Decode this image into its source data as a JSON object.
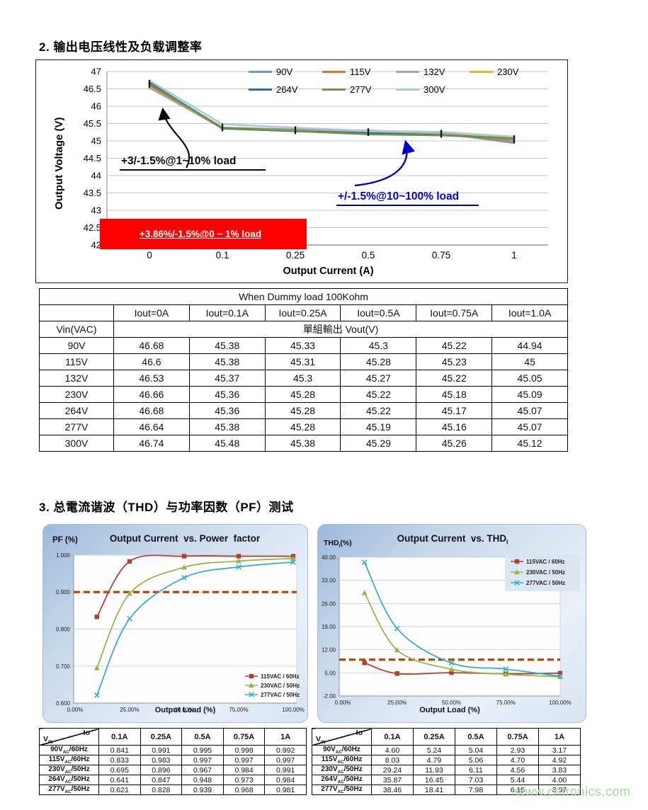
{
  "page": {
    "section2_title": "2.  输出电压线性及负载调整率",
    "section3_title": "3.  总電流谐波（THD）与功率因数（PF）测试",
    "watermark": "www.cntronics.com"
  },
  "colors": {
    "annotation_blue": "#0000CC",
    "annotation_red_box": "#FE0000",
    "threshold_dash": "#B04300",
    "watermark_green": "#A5D19B"
  },
  "chart_data": [
    {
      "id": "vout_vs_iout",
      "type": "line",
      "title": "",
      "xlabel": "Output Current (A)",
      "ylabel": "Output Voltage (V)",
      "categories": [
        "0",
        "0.1",
        "0.25",
        "0.5",
        "0.75",
        "1"
      ],
      "ylim": [
        42,
        47
      ],
      "yticks": [
        "47",
        "46.5",
        "46",
        "45.5",
        "45",
        "44.5",
        "44",
        "43.5",
        "43",
        "42.5",
        "42"
      ],
      "grid": true,
      "legend_position": "top-right",
      "series": [
        {
          "name": "90V",
          "color": "#6E9CC9",
          "values": [
            46.68,
            45.38,
            45.33,
            45.3,
            45.22,
            44.94
          ]
        },
        {
          "name": "115V",
          "color": "#D9772E",
          "values": [
            46.6,
            45.38,
            45.31,
            45.28,
            45.23,
            45
          ]
        },
        {
          "name": "132V",
          "color": "#A6A6A6",
          "values": [
            46.53,
            45.37,
            45.3,
            45.27,
            45.22,
            45.05
          ]
        },
        {
          "name": "230V",
          "color": "#E8B32A",
          "values": [
            46.66,
            45.36,
            45.28,
            45.22,
            45.18,
            45.09
          ]
        },
        {
          "name": "264V",
          "color": "#3565A5",
          "values": [
            46.68,
            45.36,
            45.28,
            45.22,
            45.17,
            45.07
          ]
        },
        {
          "name": "277V",
          "color": "#70953F",
          "values": [
            46.64,
            45.38,
            45.28,
            45.19,
            45.16,
            45.07
          ]
        },
        {
          "name": "300V",
          "color": "#A9C8E6",
          "values": [
            46.74,
            45.48,
            45.38,
            45.29,
            45.26,
            45.12
          ]
        }
      ],
      "annotations": {
        "low_load": "+3/-1.5%@1~10% load",
        "mid_load": "+/-1.5%@10~100% load",
        "zero_load": "+3.86%/-1.5%@0 ~ 1% load"
      }
    },
    {
      "id": "pf_vs_load",
      "type": "line",
      "title": "Output Current  vs. Power  factor",
      "title_sub": "",
      "ylabel": "PF (%)",
      "ylabel_sub": "",
      "ylabel_rest": "",
      "xlabel": "Output Load (%)",
      "x_percent": [
        10,
        25,
        50,
        75,
        100
      ],
      "xticks": [
        "0.00%",
        "25.00%",
        "50.00%",
        "75.00%",
        "100.00%"
      ],
      "ylim": [
        0.6,
        1.0
      ],
      "yticks": [
        "1.000",
        "0.900",
        "0.800",
        "0.700",
        "0.600"
      ],
      "threshold": 0.9,
      "grid": true,
      "legend_position": "bottom-right",
      "series": [
        {
          "name": "115VAC / 60Hz",
          "color": "#B23E38",
          "marker": "square",
          "values": [
            0.833,
            0.983,
            0.997,
            0.997,
            0.997
          ]
        },
        {
          "name": "230VAC / 50Hz",
          "color": "#96B64C",
          "marker": "triangle",
          "values": [
            0.695,
            0.896,
            0.967,
            0.984,
            0.991
          ]
        },
        {
          "name": "277VAC / 50Hz",
          "color": "#3AAEC1",
          "marker": "x",
          "values": [
            0.621,
            0.828,
            0.939,
            0.968,
            0.981
          ]
        }
      ]
    },
    {
      "id": "thd_vs_load",
      "type": "line",
      "title": "Output Current  vs. THD",
      "title_sub": "I",
      "ylabel": "THD",
      "ylabel_sub": "I",
      "ylabel_rest": "(%)",
      "xlabel": "Output Load (%)",
      "x_percent": [
        10,
        25,
        50,
        75,
        100
      ],
      "xticks": [
        "0.00%",
        "25.00%",
        "50.00%",
        "75.00%",
        "100.00%"
      ],
      "ylim": [
        -2,
        40
      ],
      "yticks": [
        "40.00",
        "33.00",
        "26.00",
        "19.00",
        "12.00",
        "5.00",
        "-2.00"
      ],
      "threshold": 9.0,
      "grid": true,
      "legend_position": "top-right",
      "series": [
        {
          "name": "115VAC / 60Hz",
          "color": "#B23E38",
          "marker": "square",
          "values": [
            8.03,
            4.79,
            5.06,
            4.7,
            4.92
          ]
        },
        {
          "name": "230VAC / 50Hz",
          "color": "#96B64C",
          "marker": "triangle",
          "values": [
            29.24,
            11.93,
            6.11,
            4.56,
            3.83
          ]
        },
        {
          "name": "277VAC / 50Hz",
          "color": "#3AAEC1",
          "marker": "x",
          "values": [
            38.46,
            18.41,
            7.98,
            6.15,
            3.97
          ]
        }
      ]
    }
  ],
  "vout_table": {
    "caption": "When Dummy load 100Kohm",
    "col_headers": [
      "Iout=0A",
      "Iout=0.1A",
      "Iout=0.25A",
      "Iout=0.5A",
      "Iout=0.75A",
      "Iout=1.0A"
    ],
    "vin_label": "Vin(VAC)",
    "vout_label": "單組輸出  Vout(V)",
    "rows": [
      {
        "vin": "90V",
        "values": [
          "46.68",
          "45.38",
          "45.33",
          "45.3",
          "45.22",
          "44.94"
        ]
      },
      {
        "vin": "115V",
        "values": [
          "46.6",
          "45.38",
          "45.31",
          "45.28",
          "45.23",
          "45"
        ]
      },
      {
        "vin": "132V",
        "values": [
          "46.53",
          "45.37",
          "45.3",
          "45.27",
          "45.22",
          "45.05"
        ]
      },
      {
        "vin": "230V",
        "values": [
          "46.66",
          "45.36",
          "45.28",
          "45.22",
          "45.18",
          "45.09"
        ]
      },
      {
        "vin": "264V",
        "values": [
          "46.68",
          "45.36",
          "45.28",
          "45.22",
          "45.17",
          "45.07"
        ]
      },
      {
        "vin": "277V",
        "values": [
          "46.64",
          "45.38",
          "45.28",
          "45.19",
          "45.16",
          "45.07"
        ]
      },
      {
        "vin": "300V",
        "values": [
          "46.74",
          "45.48",
          "45.38",
          "45.29",
          "45.26",
          "45.12"
        ]
      }
    ]
  },
  "pf_table": {
    "corner_top": "Io",
    "corner_bottom_main": "V",
    "corner_bottom_sub": "IN",
    "col_headers": [
      "0.1A",
      "0.25A",
      "0.5A",
      "0.75A",
      "1A"
    ],
    "rows": [
      {
        "label_main": "90V",
        "label_sub": "AC",
        "label_rest": "/60Hz",
        "values": [
          "0.841",
          "0.991",
          "0.995",
          "0.998",
          "0.992"
        ]
      },
      {
        "label_main": "115V",
        "label_sub": "AC",
        "label_rest": "/60Hz",
        "values": [
          "0.833",
          "0.983",
          "0.997",
          "0.997",
          "0.997"
        ]
      },
      {
        "label_main": "230V",
        "label_sub": "AC",
        "label_rest": "/50Hz",
        "values": [
          "0.695",
          "0.896",
          "0.967",
          "0.984",
          "0.991"
        ]
      },
      {
        "label_main": "264V",
        "label_sub": "AC",
        "label_rest": "/50Hz",
        "values": [
          "0.641",
          "0.847",
          "0.948",
          "0.973",
          "0.984"
        ]
      },
      {
        "label_main": "277V",
        "label_sub": "AC",
        "label_rest": "/50Hz",
        "values": [
          "0.621",
          "0.828",
          "0.939",
          "0.968",
          "0.981"
        ]
      }
    ]
  },
  "thd_table": {
    "corner_top": "Io",
    "corner_bottom_main": "V",
    "corner_bottom_sub": "IN",
    "col_headers": [
      "0.1A",
      "0.25A",
      "0.5A",
      "0.75A",
      "1A"
    ],
    "rows": [
      {
        "label_main": "90V",
        "label_sub": "AC",
        "label_rest": "/60Hz",
        "values": [
          "4.60",
          "5.24",
          "5.04",
          "2.93",
          "3.17"
        ]
      },
      {
        "label_main": "115V",
        "label_sub": "AC",
        "label_rest": "/60Hz",
        "values": [
          "8.03",
          "4.79",
          "5.06",
          "4.70",
          "4.92"
        ]
      },
      {
        "label_main": "230V",
        "label_sub": "AC",
        "label_rest": "/50Hz",
        "values": [
          "29.24",
          "11.93",
          "6.11",
          "4.56",
          "3.83"
        ]
      },
      {
        "label_main": "264V",
        "label_sub": "AC",
        "label_rest": "/50Hz",
        "values": [
          "35.87",
          "16.45",
          "7.03",
          "5.44",
          "4.00"
        ]
      },
      {
        "label_main": "277V",
        "label_sub": "AC",
        "label_rest": "/50Hz",
        "values": [
          "38.46",
          "18.41",
          "7.98",
          "6.15",
          "3.97"
        ]
      }
    ]
  }
}
